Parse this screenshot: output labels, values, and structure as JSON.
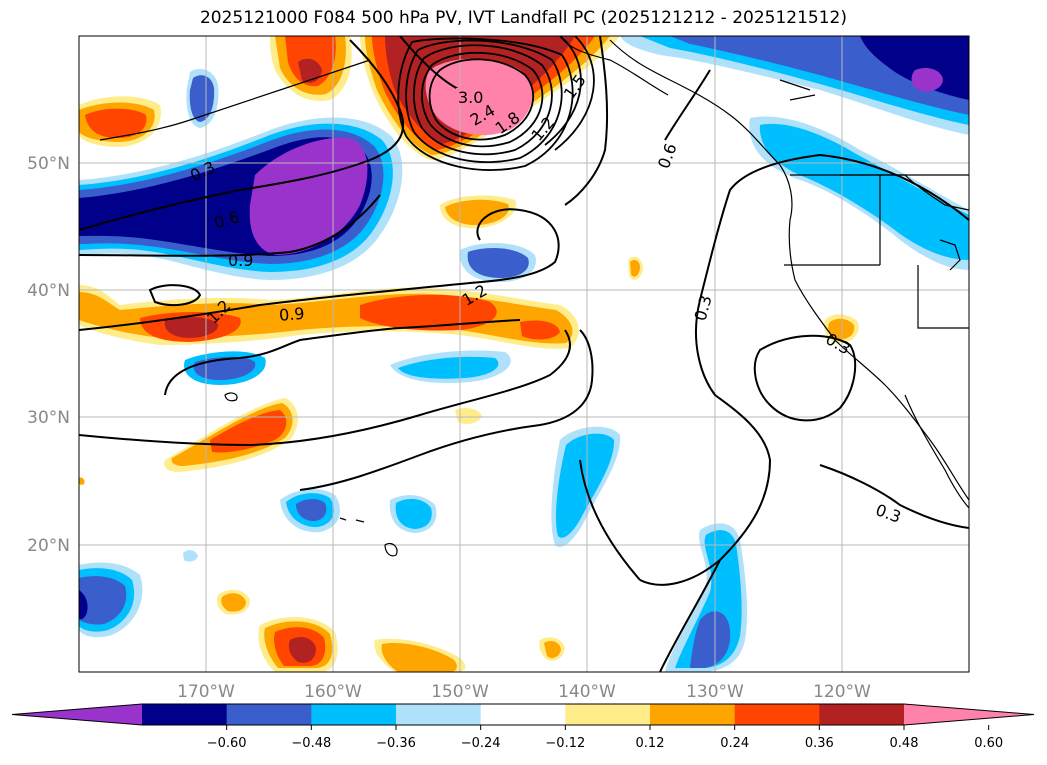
{
  "title": "2025121000 F084 500 hPa PV, IVT Landfall PC (2025121212 - 2025121512)",
  "map": {
    "lon_labels": [
      "170°W",
      "160°W",
      "150°W",
      "140°W",
      "130°W",
      "120°W"
    ],
    "lat_labels": [
      "50°N",
      "40°N",
      "30°N",
      "20°N"
    ],
    "lon_range": [
      -180,
      -110
    ],
    "lat_range": [
      10,
      60
    ]
  },
  "colorbar": {
    "ticks": [
      "−0.60",
      "−0.48",
      "−0.36",
      "−0.24",
      "−0.12",
      "0.12",
      "0.24",
      "0.36",
      "0.48",
      "0.60"
    ],
    "colors": [
      "#9933cc",
      "#00008b",
      "#3a5fcd",
      "#00bfff",
      "#afe1fa",
      "#ffffff",
      "#ffec8b",
      "#ffa500",
      "#ff4500",
      "#b22222",
      "#ff82ab"
    ]
  },
  "contour_labels": [
    "3.0",
    "2.4",
    "1.8",
    "1.5",
    "1.2",
    "0.6",
    "0.3",
    "0.6",
    "0.9",
    "1.2",
    "0.9",
    "1.2",
    "0.3",
    "0.3",
    "0.3"
  ]
}
